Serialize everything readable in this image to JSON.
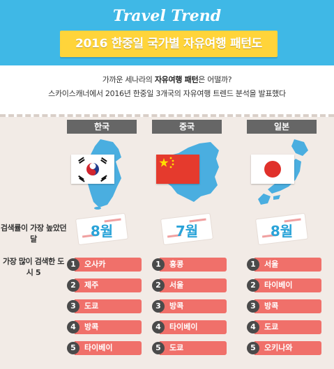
{
  "header": {
    "brand": "Travel Trend",
    "title": "2016 한중일 국가별 자유여행 패턴도"
  },
  "intro": {
    "line1_before": "가까운 세나라의 ",
    "line1_strong": "자유여행 패턴",
    "line1_after": "은 어떨까?",
    "line2": "스카이스캐너에서 2016년 한중일 3개국의 자유여행 트렌드 분석을 발표했다"
  },
  "row_labels": {
    "peak_month": "검색률이 가장 높았던 달",
    "top_cities": "가장 많이 검색한 도시 5"
  },
  "countries": [
    {
      "name": "한국",
      "flag": "korea-flag",
      "peak_month": "8월",
      "cities": [
        "오사카",
        "제주",
        "도쿄",
        "방콕",
        "타이베이"
      ]
    },
    {
      "name": "중국",
      "flag": "china-flag",
      "peak_month": "7월",
      "cities": [
        "홍콩",
        "서울",
        "방콕",
        "타이베이",
        "도쿄"
      ]
    },
    {
      "name": "일본",
      "flag": "japan-flag",
      "peak_month": "8월",
      "cities": [
        "서울",
        "타이베이",
        "방콕",
        "도쿄",
        "오키나와"
      ]
    }
  ],
  "rank_numbers": [
    "1",
    "2",
    "3",
    "4",
    "5"
  ],
  "colors": {
    "header_bg": "#3fb8e6",
    "ribbon": "#ffd43a",
    "tab": "#666666",
    "map": "#4aaee0",
    "city_bar": "#f0706a",
    "month_text": "#2aa3d8"
  }
}
